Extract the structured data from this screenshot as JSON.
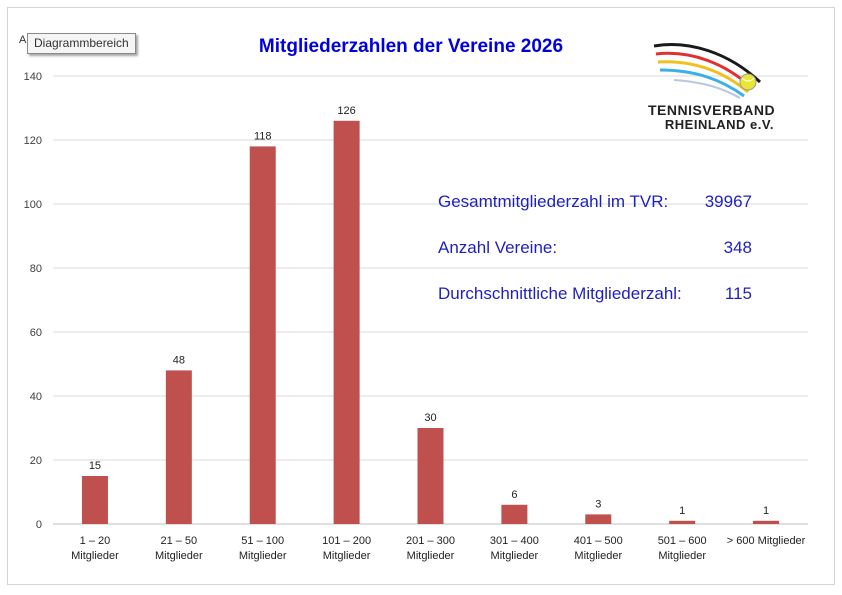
{
  "tooltip": "Diagrammbereich",
  "axis_fragment": "A",
  "logo": {
    "line1": "TENNISVERBAND",
    "line2": "RHEINLAND e.V."
  },
  "stats": [
    {
      "label": "Gesamtmitgliederzahl im TVR:",
      "value": "39967"
    },
    {
      "label": "Anzahl Vereine:",
      "value": "348"
    },
    {
      "label": "Durchschnittliche Mitgliederzahl:",
      "value": "115"
    }
  ],
  "colors": {
    "bar": "#c0504d",
    "title": "#0000dd",
    "stats": "#1f1fbf",
    "grid": "#d9d9d9"
  },
  "chart_data": {
    "type": "bar",
    "title": "Mitgliederzahlen der Vereine 2026",
    "categories": [
      [
        "1 – 20",
        "Mitglieder"
      ],
      [
        "21 – 50",
        "Mitglieder"
      ],
      [
        "51 – 100",
        "Mitglieder"
      ],
      [
        "101 – 200",
        "Mitglieder"
      ],
      [
        "201 – 300",
        "Mitglieder"
      ],
      [
        "301 – 400",
        "Mitglieder"
      ],
      [
        "401 – 500",
        "Mitglieder"
      ],
      [
        "501 – 600",
        "Mitglieder"
      ],
      [
        "> 600 Mitglieder"
      ]
    ],
    "values": [
      15,
      48,
      118,
      126,
      30,
      6,
      3,
      1,
      1
    ],
    "data_labels": [
      "15",
      "48",
      "118",
      "126",
      "30",
      "6",
      "3",
      "1",
      "1"
    ],
    "yticks": [
      "0",
      "20",
      "40",
      "60",
      "80",
      "100",
      "120",
      "140"
    ],
    "ylim": [
      0,
      140
    ],
    "grid": true,
    "xlabel": "",
    "ylabel": ""
  }
}
